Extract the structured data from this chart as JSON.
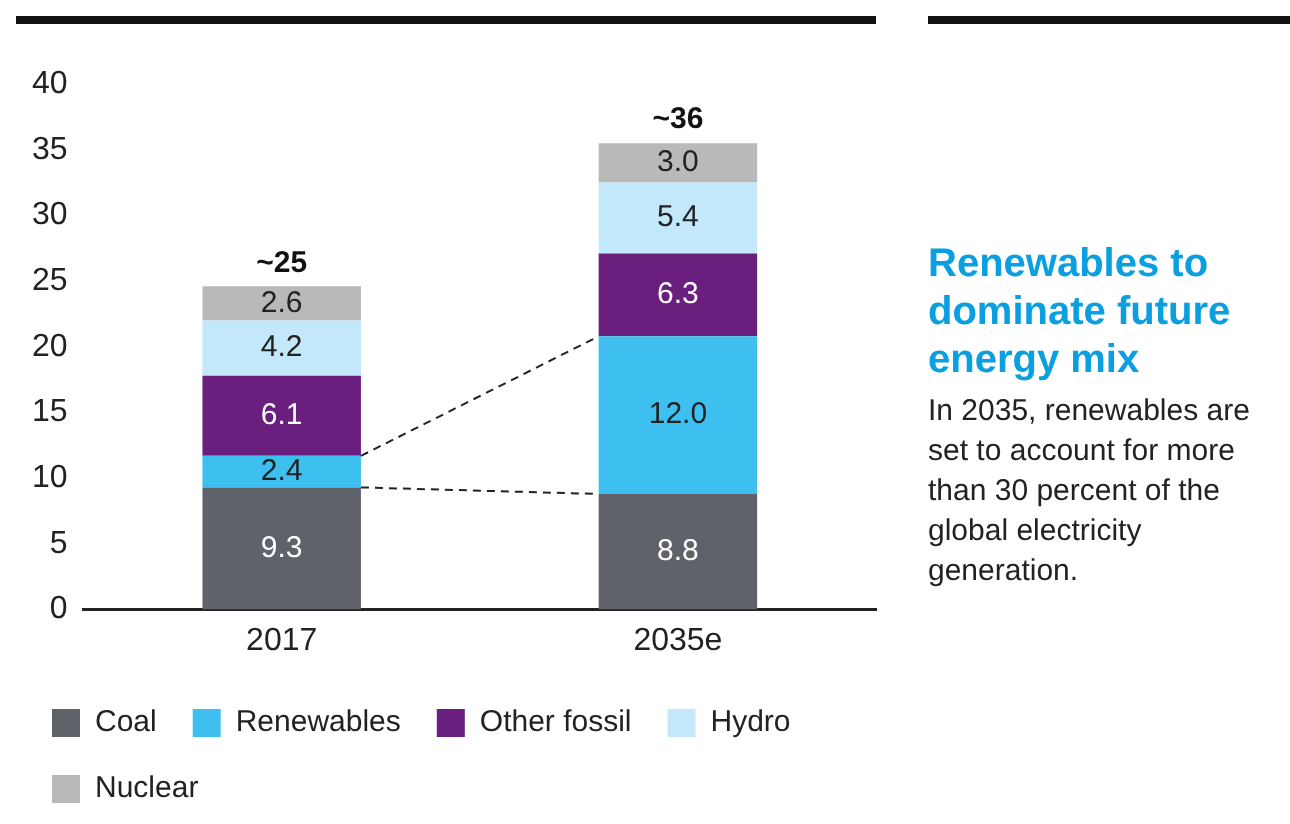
{
  "chart_data": {
    "type": "bar",
    "title": "Renewables to dominate future energy mix",
    "subtitle": "In 2035, renewables are set to account for more than 30 percent of the global electricity generation.",
    "categories": [
      "2017",
      "2035e"
    ],
    "stacked": true,
    "series": [
      {
        "name": "Coal",
        "color": "#5f6369",
        "values": [
          9.3,
          8.8
        ],
        "value_labels": [
          "9.3",
          "8.8"
        ]
      },
      {
        "name": "Renewables",
        "color": "#3dbfef",
        "values": [
          2.4,
          12.0
        ],
        "value_labels": [
          "2.4",
          "12.0"
        ]
      },
      {
        "name": "Other fossil",
        "color": "#6a1f7f",
        "values": [
          6.1,
          6.3
        ],
        "value_labels": [
          "6.1",
          "6.3"
        ]
      },
      {
        "name": "Hydro",
        "color": "#c2e8fa",
        "values": [
          4.2,
          5.4
        ],
        "value_labels": [
          "4.2",
          "5.4"
        ]
      },
      {
        "name": "Nuclear",
        "color": "#b9b9b9",
        "values": [
          2.6,
          3.0
        ],
        "value_labels": [
          "2.6",
          "3.0"
        ]
      }
    ],
    "totals": [
      "~25",
      "~36"
    ],
    "ylim": [
      0,
      40
    ],
    "yticks": [
      0,
      5,
      10,
      15,
      20,
      25,
      30,
      35,
      40
    ],
    "grid": false,
    "legend": "bottom"
  }
}
